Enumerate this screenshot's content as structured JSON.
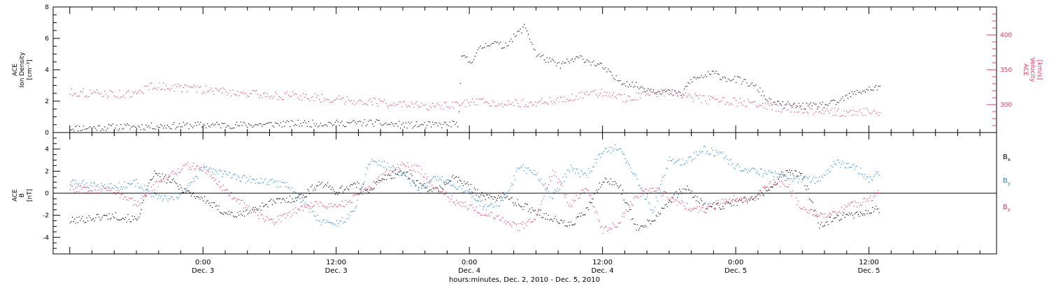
{
  "chart_data": [
    {
      "type": "scatter",
      "panel": "top",
      "ylabel_lines": [
        "ACE",
        "Ion Density",
        "[cm⁻³]"
      ],
      "y2label_lines": [
        "ACE",
        "Velocity",
        "[km/s]"
      ],
      "ylim": [
        0,
        8
      ],
      "y_ticks": [
        0,
        2,
        4,
        6,
        8
      ],
      "y2lim": [
        260,
        440
      ],
      "y2_ticks": [
        300,
        350,
        400
      ],
      "series": [
        {
          "color": "#000000",
          "axis": "left",
          "x": [
            -12,
            -9,
            -6,
            -3,
            0,
            3,
            6,
            9,
            12,
            15,
            18,
            21,
            23,
            23.3,
            24,
            25,
            26,
            27,
            28,
            29,
            30,
            32,
            34,
            36,
            37,
            38,
            39,
            40,
            42,
            43,
            44,
            45,
            46,
            47,
            48,
            49,
            50,
            51,
            52,
            54,
            55,
            56,
            57,
            58,
            59,
            60,
            61
          ],
          "y": [
            0.3,
            0.35,
            0.4,
            0.45,
            0.5,
            0.5,
            0.55,
            0.6,
            0.6,
            0.65,
            0.5,
            0.5,
            0.6,
            5.0,
            4.5,
            5.4,
            5.8,
            5.5,
            6.1,
            6.8,
            5.0,
            4.3,
            4.8,
            4.2,
            3.5,
            3.2,
            3.0,
            2.8,
            2.6,
            2.4,
            3.4,
            3.6,
            3.8,
            3.5,
            3.4,
            3.2,
            2.8,
            2.0,
            1.8,
            1.7,
            1.7,
            1.8,
            1.9,
            2.3,
            2.6,
            2.8,
            2.9
          ]
        },
        {
          "color": "#e8335e",
          "axis": "right",
          "x": [
            -12,
            -9,
            -6,
            -5,
            -3,
            0,
            3,
            6,
            9,
            12,
            15,
            18,
            21,
            23,
            24,
            27,
            30,
            33,
            36,
            38,
            40,
            42,
            44,
            46,
            48,
            50,
            52,
            54,
            56,
            58,
            60,
            61
          ],
          "y": [
            318,
            316,
            315,
            327,
            326,
            322,
            318,
            314,
            312,
            308,
            305,
            300,
            297,
            300,
            303,
            303,
            303,
            310,
            318,
            310,
            314,
            320,
            311,
            306,
            304,
            301,
            296,
            294,
            291,
            289,
            290,
            291
          ]
        }
      ]
    },
    {
      "type": "scatter",
      "panel": "bottom",
      "ylabel_lines": [
        "ACE",
        "B",
        "[nT]"
      ],
      "ylim": [
        -5.5,
        5.5
      ],
      "y_ticks": [
        -4,
        -2,
        0,
        2,
        4
      ],
      "zero_line": true,
      "series": [
        {
          "name": "B",
          "subscript": "x",
          "color": "#000000",
          "x": [
            -12,
            -10,
            -8,
            -6,
            -4.5,
            -3,
            -1.5,
            0,
            1.5,
            3,
            4.5,
            6,
            7.5,
            9,
            10.5,
            12,
            13.5,
            15,
            16.5,
            18,
            19.5,
            21,
            22.5,
            24,
            25.5,
            27,
            28.5,
            30,
            31.5,
            33,
            34.5,
            36,
            37.5,
            39,
            40.5,
            42,
            43.5,
            45,
            46.5,
            48,
            49.5,
            51,
            52.5,
            54,
            55.5,
            57,
            58.5,
            60,
            61
          ],
          "y": [
            -2.5,
            -2.2,
            -2.0,
            -2.4,
            1.8,
            1.2,
            0.2,
            -0.5,
            -1.5,
            -2.0,
            -1.5,
            -0.8,
            -0.6,
            -0.2,
            1.0,
            0.2,
            0.8,
            0.4,
            1.5,
            2.0,
            0.8,
            0.2,
            1.5,
            0.6,
            -0.4,
            -0.2,
            -1.0,
            -1.6,
            -2.3,
            -2.9,
            -1.6,
            1.2,
            0.8,
            -3.1,
            -2.4,
            -0.6,
            0.5,
            -1.0,
            -1.2,
            -0.8,
            -0.4,
            0.4,
            2.1,
            1.6,
            -3.0,
            -2.1,
            -2.0,
            -1.6,
            -1.4
          ]
        },
        {
          "name": "B",
          "subscript": "y",
          "color": "#1f86e0",
          "x": [
            -12,
            -10,
            -8,
            -6,
            -4.5,
            -3,
            -1.5,
            0,
            1.5,
            3,
            4.5,
            6,
            7.5,
            9,
            10.5,
            12,
            13.5,
            15,
            16.5,
            18,
            19.5,
            21,
            22.5,
            24,
            25.5,
            27,
            28.5,
            30,
            31.5,
            33,
            34.5,
            36,
            37.5,
            39,
            40.5,
            42,
            43.5,
            45,
            46.5,
            48,
            49.5,
            51,
            52.5,
            54,
            55.5,
            57,
            58.5,
            60,
            61
          ],
          "y": [
            1.0,
            0.8,
            0.6,
            1.0,
            -0.2,
            -0.6,
            0.4,
            2.3,
            1.9,
            1.4,
            1.2,
            1.0,
            0.8,
            -0.8,
            -2.5,
            -2.8,
            -1.8,
            3.0,
            2.5,
            1.8,
            0.2,
            1.4,
            0.8,
            -0.2,
            -1.2,
            -0.9,
            2.4,
            1.8,
            -0.4,
            2.3,
            1.6,
            3.8,
            4.2,
            1.4,
            -1.6,
            3.1,
            2.8,
            4.0,
            3.6,
            2.5,
            2.0,
            1.8,
            1.5,
            1.3,
            1.2,
            2.8,
            2.5,
            1.4,
            1.9
          ]
        },
        {
          "name": "B",
          "subscript": "z",
          "color": "#e8335e",
          "x": [
            -12,
            -10,
            -8,
            -6,
            -4.5,
            -3,
            -1.5,
            0,
            1.5,
            3,
            4.5,
            6,
            7.5,
            9,
            10.5,
            12,
            13.5,
            15,
            16.5,
            18,
            19.5,
            21,
            22.5,
            24,
            25.5,
            27,
            28.5,
            30,
            31.5,
            33,
            34.5,
            36,
            37.5,
            39,
            40.5,
            42,
            43.5,
            45,
            46.5,
            48,
            49.5,
            51,
            52.5,
            54,
            55.5,
            57,
            58.5,
            60,
            61
          ],
          "y": [
            0.5,
            0.4,
            0.3,
            -1.0,
            0.6,
            1.8,
            2.5,
            2.3,
            0.8,
            -0.6,
            -1.6,
            -2.6,
            -2.0,
            -1.2,
            -0.9,
            -1.2,
            -0.5,
            0.5,
            1.8,
            2.6,
            2.2,
            0.4,
            -0.6,
            -1.2,
            -1.8,
            -2.4,
            -3.1,
            -2.0,
            2.0,
            -1.0,
            0.6,
            -3.4,
            -2.6,
            -0.3,
            0.6,
            -0.4,
            -1.2,
            -1.6,
            -0.8,
            -0.4,
            -0.6,
            0.9,
            1.0,
            -1.5,
            -2.0,
            -1.6,
            -1.0,
            -0.6,
            0.2
          ]
        }
      ]
    }
  ],
  "x_axis": {
    "xlim": [
      -13.5,
      71.5
    ],
    "label": "hours:minutes, Dec.  2, 2010 - Dec.  5, 2010",
    "ticks": [
      {
        "hour": 0,
        "time": "0:00",
        "day": "Dec. 3"
      },
      {
        "hour": 12,
        "time": "12:00",
        "day": "Dec. 3"
      },
      {
        "hour": 24,
        "time": "0:00",
        "day": "Dec. 4"
      },
      {
        "hour": 36,
        "time": "12:00",
        "day": "Dec. 4"
      },
      {
        "hour": 48,
        "time": "0:00",
        "day": "Dec. 5"
      },
      {
        "hour": 60,
        "time": "12:00",
        "day": "Dec. 5"
      }
    ]
  }
}
